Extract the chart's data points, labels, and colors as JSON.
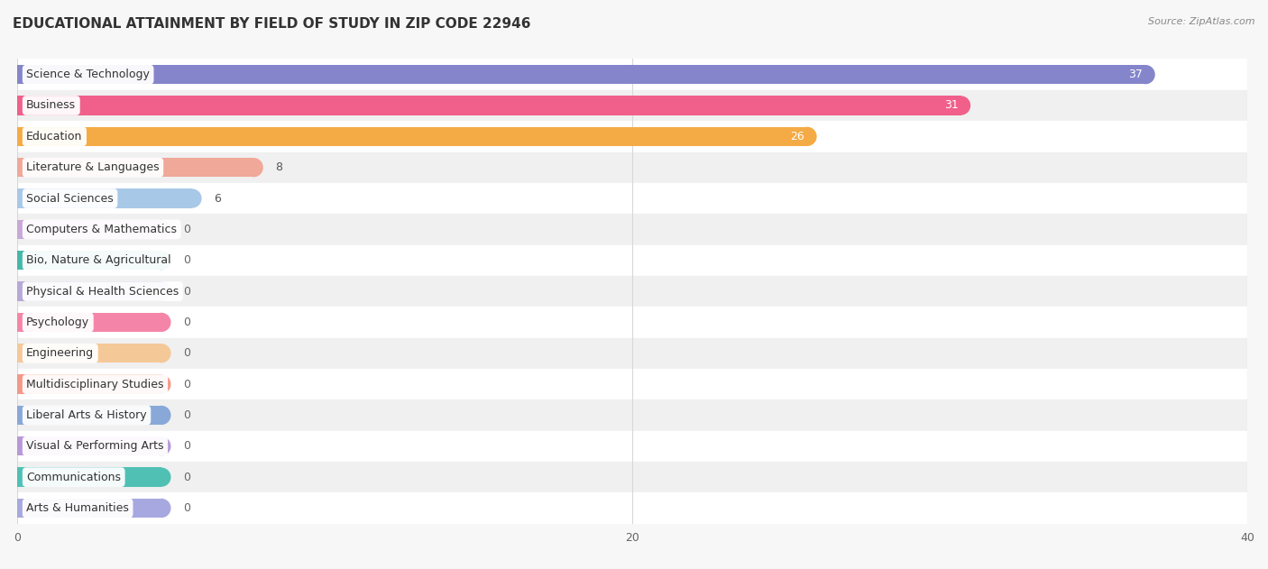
{
  "title": "EDUCATIONAL ATTAINMENT BY FIELD OF STUDY IN ZIP CODE 22946",
  "source": "Source: ZipAtlas.com",
  "categories": [
    "Science & Technology",
    "Business",
    "Education",
    "Literature & Languages",
    "Social Sciences",
    "Computers & Mathematics",
    "Bio, Nature & Agricultural",
    "Physical & Health Sciences",
    "Psychology",
    "Engineering",
    "Multidisciplinary Studies",
    "Liberal Arts & History",
    "Visual & Performing Arts",
    "Communications",
    "Arts & Humanities"
  ],
  "values": [
    37,
    31,
    26,
    8,
    6,
    0,
    0,
    0,
    0,
    0,
    0,
    0,
    0,
    0,
    0
  ],
  "bar_colors": [
    "#8585cc",
    "#f0608a",
    "#f5ab45",
    "#f0a898",
    "#a8c8e8",
    "#c8a8d8",
    "#45b8a8",
    "#b8a8d8",
    "#f585a8",
    "#f5c898",
    "#f59888",
    "#88a8d8",
    "#b898d8",
    "#50c0b5",
    "#a8a8e0"
  ],
  "stub_value": 5.0,
  "xlim": [
    0,
    40
  ],
  "xticks": [
    0,
    20,
    40
  ],
  "background_color": "#f7f7f7",
  "row_even_color": "#ffffff",
  "row_odd_color": "#f0f0f0",
  "grid_color": "#d8d8d8",
  "title_fontsize": 11,
  "label_fontsize": 9,
  "value_fontsize": 9
}
